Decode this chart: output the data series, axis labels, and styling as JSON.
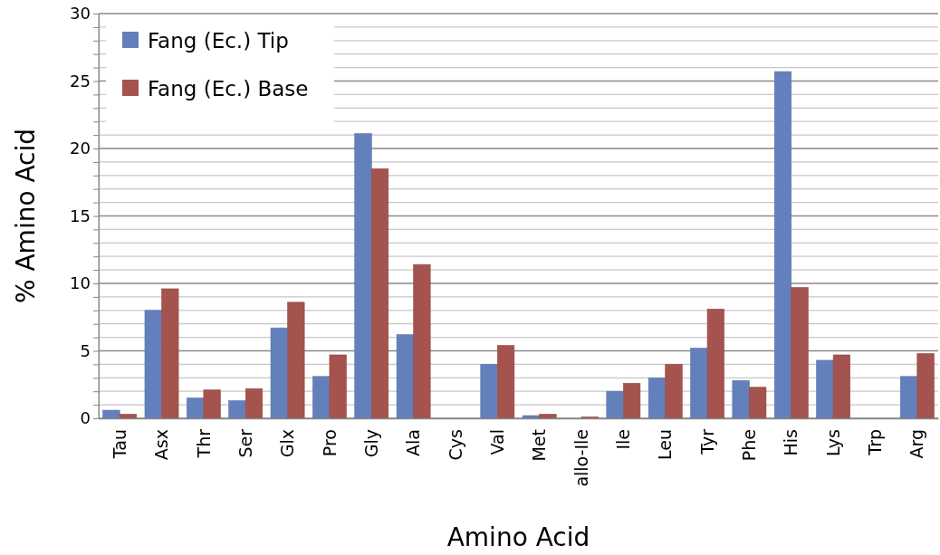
{
  "chart_data": {
    "type": "bar",
    "xlabel": "Amino Acid",
    "ylabel": "% Amino Acid",
    "categories": [
      "Tau",
      "Asx",
      "Thr",
      "Ser",
      "Glx",
      "Pro",
      "Gly",
      "Ala",
      "Cys",
      "Val",
      "Met",
      "allo-Ile",
      "Ile",
      "Leu",
      "Tyr",
      "Phe",
      "His",
      "Lys",
      "Trp",
      "Arg"
    ],
    "series": [
      {
        "name": "Fang (Ec.) Tip",
        "color": "#6480bc",
        "values": [
          0.6,
          8.0,
          1.5,
          1.3,
          6.7,
          3.1,
          21.1,
          6.2,
          0,
          4.0,
          0.2,
          0,
          2.0,
          3.0,
          5.2,
          2.8,
          25.7,
          4.3,
          0,
          3.1
        ]
      },
      {
        "name": "Fang (Ec.) Base",
        "color": "#a5534e",
        "values": [
          0.3,
          9.6,
          2.1,
          2.2,
          8.6,
          4.7,
          18.5,
          11.4,
          0,
          5.4,
          0.3,
          0.1,
          2.6,
          4.0,
          8.1,
          2.3,
          9.7,
          4.7,
          0,
          4.8
        ]
      }
    ],
    "ylim": [
      0,
      30
    ],
    "yticks": [
      0,
      {
        "value": 1,
        "label": null
      },
      {
        "value": 2,
        "label": null
      },
      {
        "value": 3,
        "label": null
      },
      {
        "value": 4,
        "label": null
      },
      5,
      {
        "value": 6,
        "label": null
      },
      {
        "value": 7,
        "label": null
      },
      {
        "value": 8,
        "label": null
      },
      {
        "value": 9,
        "label": null
      },
      10,
      {
        "value": 11,
        "label": null
      },
      {
        "value": 12,
        "label": null
      },
      {
        "value": 13,
        "label": null
      },
      {
        "value": 14,
        "label": null
      },
      15,
      {
        "value": 16,
        "label": null
      },
      {
        "value": 17,
        "label": null
      },
      {
        "value": 18,
        "label": null
      },
      {
        "value": 19,
        "label": null
      },
      20,
      {
        "value": 21,
        "label": null
      },
      {
        "value": 22,
        "label": null
      },
      {
        "value": 23,
        "label": null
      },
      {
        "value": 24,
        "label": null
      },
      25,
      {
        "value": 26,
        "label": null
      },
      {
        "value": 27,
        "label": null
      },
      {
        "value": 28,
        "label": null
      },
      {
        "value": 29,
        "label": null
      },
      30
    ],
    "grid": "y",
    "legend": "top left"
  }
}
